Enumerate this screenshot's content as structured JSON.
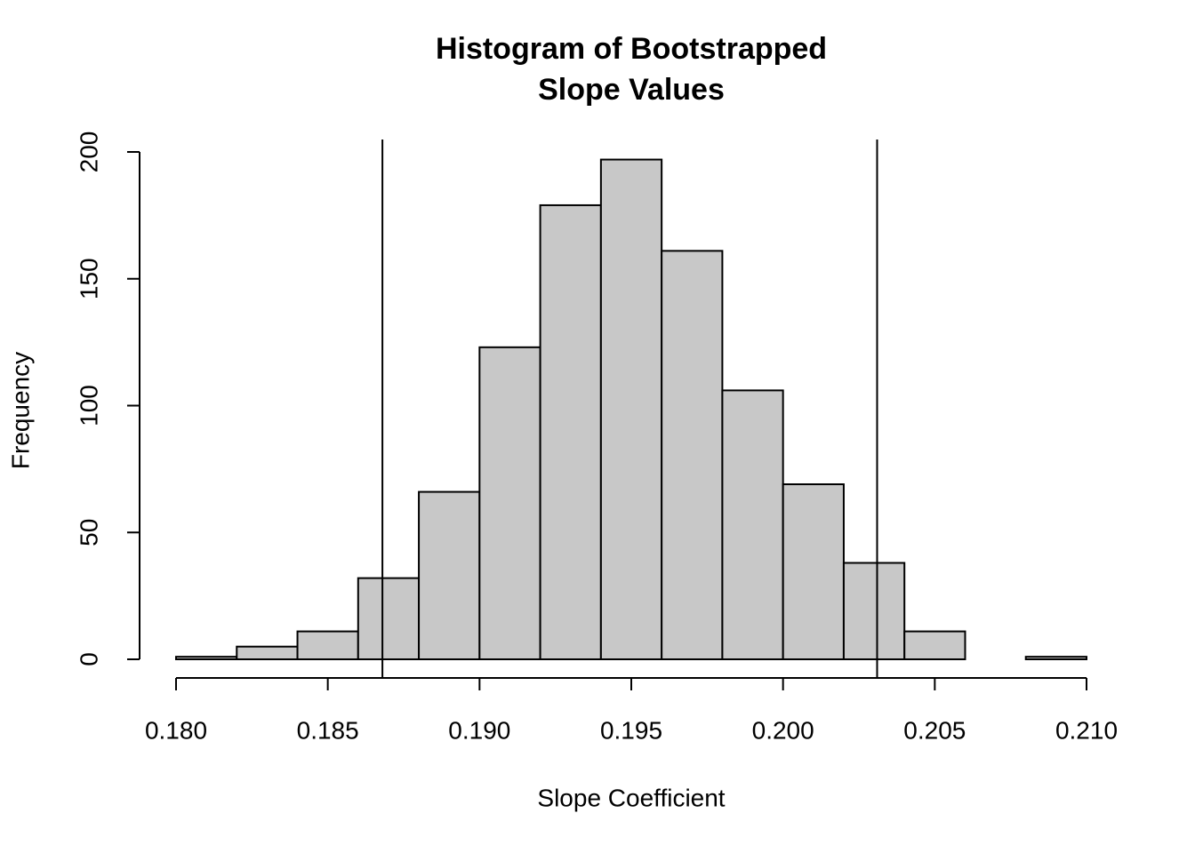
{
  "chart_data": {
    "type": "histogram",
    "title": [
      "Histogram of Bootstrapped",
      "Slope Values"
    ],
    "xlabel": "Slope Coefficient",
    "ylabel": "Frequency",
    "bins": [
      0.18,
      0.182,
      0.184,
      0.186,
      0.188,
      0.19,
      0.192,
      0.194,
      0.196,
      0.198,
      0.2,
      0.202,
      0.204,
      0.206,
      0.208,
      0.21
    ],
    "values": [
      1,
      5,
      11,
      32,
      66,
      123,
      179,
      197,
      161,
      106,
      69,
      38,
      11,
      0,
      1
    ],
    "color": "#c8c8c8",
    "xlim": [
      0.18,
      0.21
    ],
    "ylim": [
      0,
      200
    ],
    "xticks": [
      {
        "value": 0.18,
        "label": "0.180"
      },
      {
        "value": 0.185,
        "label": "0.185"
      },
      {
        "value": 0.19,
        "label": "0.190"
      },
      {
        "value": 0.195,
        "label": "0.195"
      },
      {
        "value": 0.2,
        "label": "0.200"
      },
      {
        "value": 0.205,
        "label": "0.205"
      },
      {
        "value": 0.21,
        "label": "0.210"
      }
    ],
    "yticks": [
      0,
      50,
      100,
      150,
      200
    ],
    "vlines": [
      0.1868,
      0.2031
    ]
  }
}
